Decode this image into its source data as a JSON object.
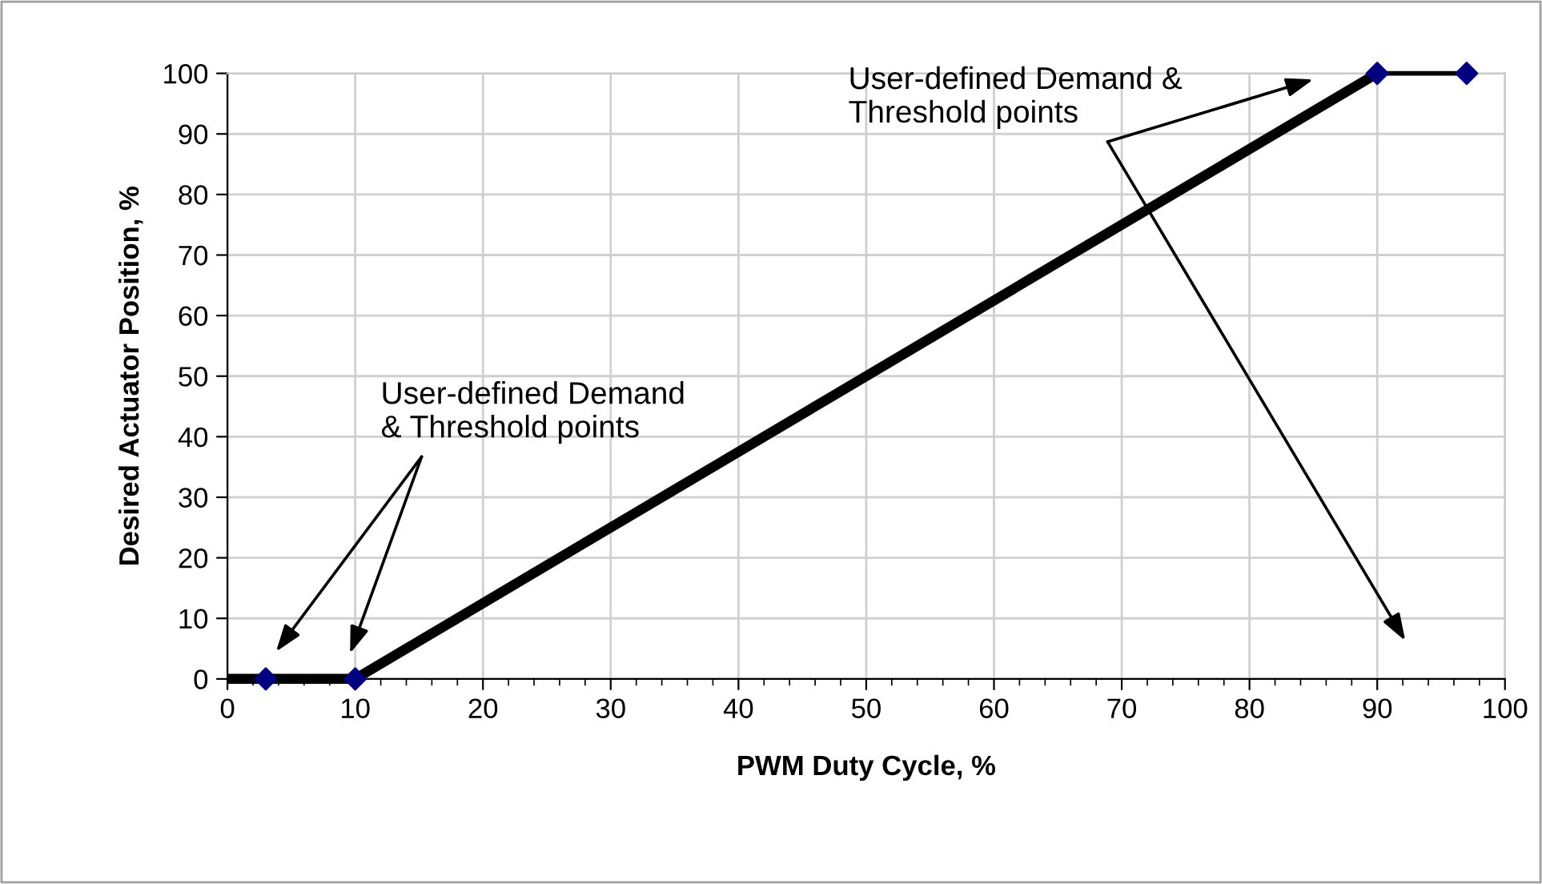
{
  "chart_data": {
    "type": "line",
    "xlabel": "PWM Duty Cycle, %",
    "ylabel": "Desired Actuator Position, %",
    "series": [
      {
        "color": "#000000",
        "x": [
          0,
          10,
          90
        ],
        "values": [
          0,
          0,
          100
        ],
        "marker": "none"
      },
      {
        "color": "#000000",
        "x": [
          90,
          97
        ],
        "values": [
          100,
          100
        ],
        "marker": "none"
      },
      {
        "type": "scatter",
        "color": "#000080",
        "x": [
          3,
          10,
          90,
          97
        ],
        "values": [
          0,
          0,
          100,
          100
        ],
        "marker": "diamond"
      }
    ],
    "annotations": [
      "User-defined Demand\n& Threshold points",
      "User-defined Demand &\nThreshold points"
    ],
    "xlim": [
      0,
      100
    ],
    "xticks": [
      0,
      10,
      20,
      30,
      40,
      50,
      60,
      70,
      80,
      90,
      100
    ],
    "ylim": [
      0,
      100
    ],
    "yticks": [
      0,
      10,
      20,
      30,
      40,
      50,
      60,
      70,
      80,
      90,
      100
    ],
    "grid": true
  }
}
